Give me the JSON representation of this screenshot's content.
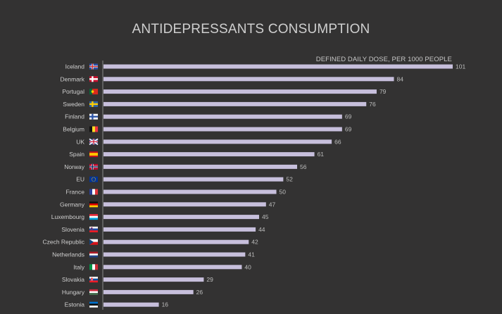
{
  "chart_data": {
    "type": "bar",
    "orientation": "horizontal",
    "title": "ANTIDEPRESSANTS CONSUMPTION",
    "unit_label": "DEFINED DAILY DOSE, PER 1000 PEOPLE",
    "categories": [
      "Iceland",
      "Denmark",
      "Portugal",
      "Sweden",
      "Finland",
      "Belgium",
      "UK",
      "Spain",
      "Norway",
      "EU",
      "France",
      "Germany",
      "Luxembourg",
      "Slovenia",
      "Czech Republic",
      "Netherlands",
      "Italy",
      "Slovakia",
      "Hungary",
      "Estonia"
    ],
    "values": [
      101,
      84,
      79,
      76,
      69,
      69,
      66,
      61,
      56,
      52,
      50,
      47,
      45,
      44,
      42,
      41,
      40,
      29,
      26,
      16
    ],
    "flags": [
      "flag-iceland-icon",
      "flag-denmark-icon",
      "flag-portugal-icon",
      "flag-sweden-icon",
      "flag-finland-icon",
      "flag-belgium-icon",
      "flag-uk-icon",
      "flag-spain-icon",
      "flag-norway-icon",
      "flag-eu-icon",
      "flag-france-icon",
      "flag-germany-icon",
      "flag-luxembourg-icon",
      "flag-slovenia-icon",
      "flag-czech-icon",
      "flag-netherlands-icon",
      "flag-italy-icon",
      "flag-slovakia-icon",
      "flag-hungary-icon",
      "flag-estonia-icon"
    ],
    "xlim": [
      0,
      101
    ],
    "grid": false,
    "colors": {
      "bar": "#c7bfdc",
      "background": "#333232",
      "axis": "#8a8a8a"
    }
  }
}
